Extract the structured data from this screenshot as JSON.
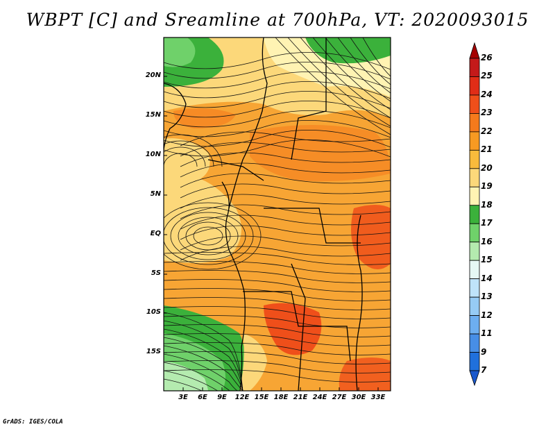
{
  "title": "WBPT [C] and Sreamline at 700hPa, VT: 2020093015",
  "map": {
    "lat_labels": [
      "20N",
      "15N",
      "10N",
      "5N",
      "EQ",
      "5S",
      "10S",
      "15S"
    ],
    "lon_labels": [
      "3E",
      "6E",
      "9E",
      "12E",
      "15E",
      "18E",
      "21E",
      "24E",
      "27E",
      "30E",
      "33E"
    ]
  },
  "colorbar": {
    "labels": [
      "26",
      "25",
      "24",
      "23",
      "22",
      "21",
      "20",
      "19",
      "18",
      "17",
      "16",
      "15",
      "14",
      "13",
      "12",
      "11",
      "9",
      "7"
    ],
    "colors": [
      "#a50000",
      "#c41a1a",
      "#e02d17",
      "#ef4f1a",
      "#f57a1c",
      "#f79a22",
      "#f9bb3c",
      "#fcd87a",
      "#fff3b3",
      "#3bb13b",
      "#6fd16a",
      "#b4ebaf",
      "#e6f8f5",
      "#bfe3fa",
      "#96cbf5",
      "#6daef0",
      "#478ee6",
      "#2070dc",
      "#1a58cc"
    ]
  },
  "credit": "GrADS: IGES/COLA"
}
